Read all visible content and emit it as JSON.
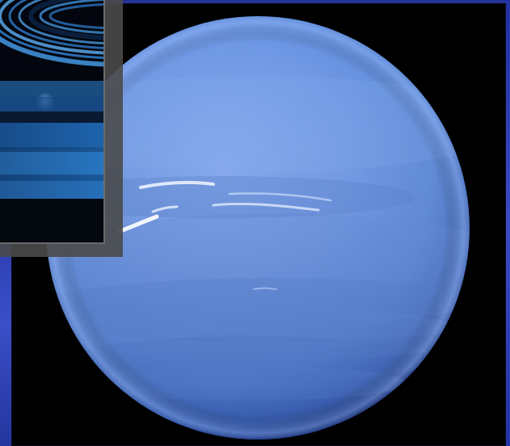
{
  "scene": {
    "subject": "neptune-icon",
    "inset_subject": "planetary-rings-icon"
  },
  "colors": {
    "background": "#1d2c8c",
    "planet_light": "#8fb2ec",
    "planet_mid": "#5f8fe0",
    "planet_dark": "#2c4fa8",
    "space": "#000000",
    "inset_frame": "#6b6b6b",
    "ring_blue": "#3f8fd6"
  }
}
